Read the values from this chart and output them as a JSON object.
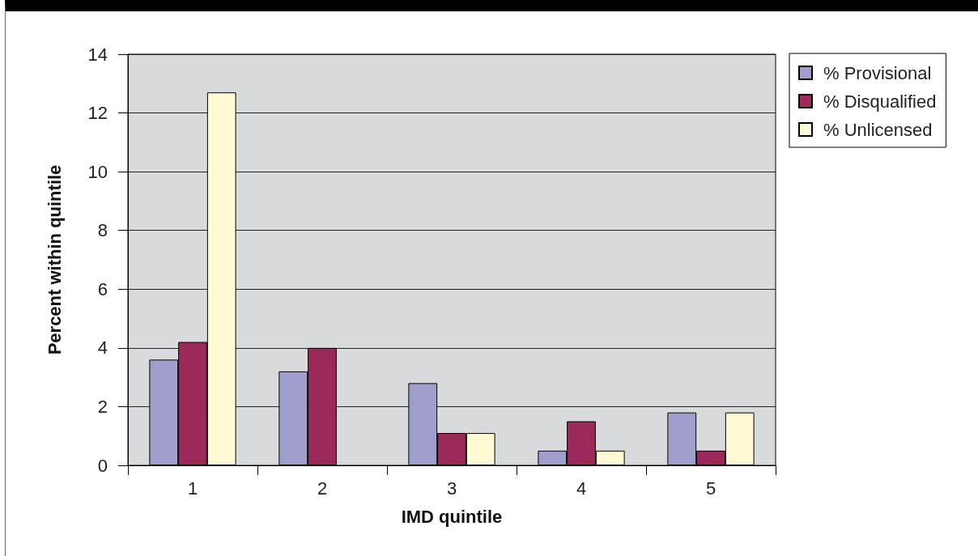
{
  "chart_data": {
    "type": "bar",
    "categories": [
      "1",
      "2",
      "3",
      "4",
      "5"
    ],
    "xlabel": "IMD quintile",
    "ylabel": "Percent within quintile",
    "series": [
      {
        "name": "% Provisional",
        "color": "#a09fcb",
        "values": [
          3.6,
          3.2,
          2.8,
          0.5,
          1.8
        ]
      },
      {
        "name": "% Disqualified",
        "color": "#9b2a5a",
        "values": [
          4.2,
          4.0,
          1.1,
          1.5,
          0.5
        ]
      },
      {
        "name": "% Unlicensed",
        "color": "#fff9d4",
        "values": [
          12.7,
          null,
          1.1,
          0.5,
          1.8
        ]
      }
    ],
    "ylim": [
      0,
      14
    ],
    "yticks": [
      0,
      2,
      4,
      6,
      8,
      10,
      12,
      14
    ],
    "grid": "y",
    "legend": "top right"
  }
}
